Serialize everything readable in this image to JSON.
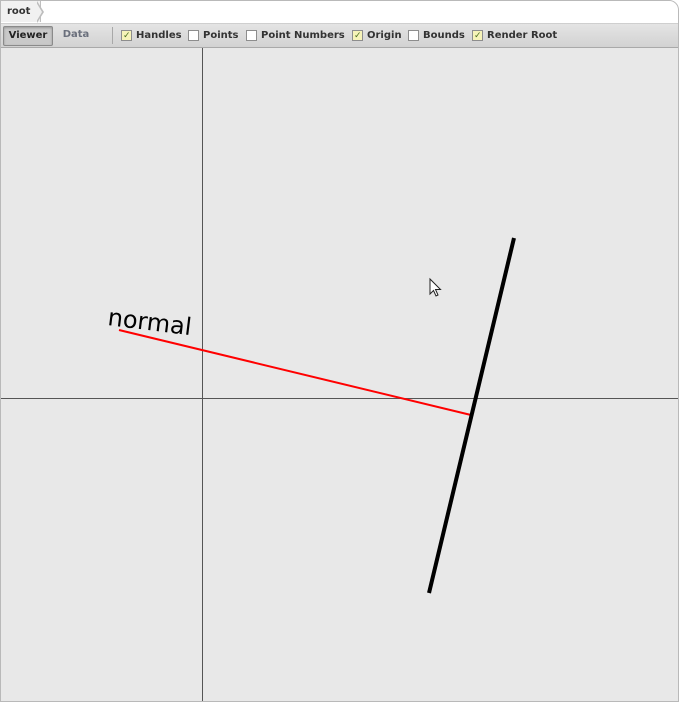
{
  "breadcrumb": {
    "root": "root"
  },
  "toolbar": {
    "tabs": {
      "viewer": "Viewer",
      "data": "Data"
    },
    "options": [
      {
        "label": "Handles",
        "checked": true
      },
      {
        "label": "Points",
        "checked": false
      },
      {
        "label": "Point Numbers",
        "checked": false
      },
      {
        "label": "Origin",
        "checked": true
      },
      {
        "label": "Bounds",
        "checked": false
      },
      {
        "label": "Render Root",
        "checked": true
      }
    ]
  },
  "canvas": {
    "label": "normal",
    "colors": {
      "background": "#e8e8e8",
      "axis": "#555555",
      "segment": "#000000",
      "normal": "#ff0000"
    }
  }
}
